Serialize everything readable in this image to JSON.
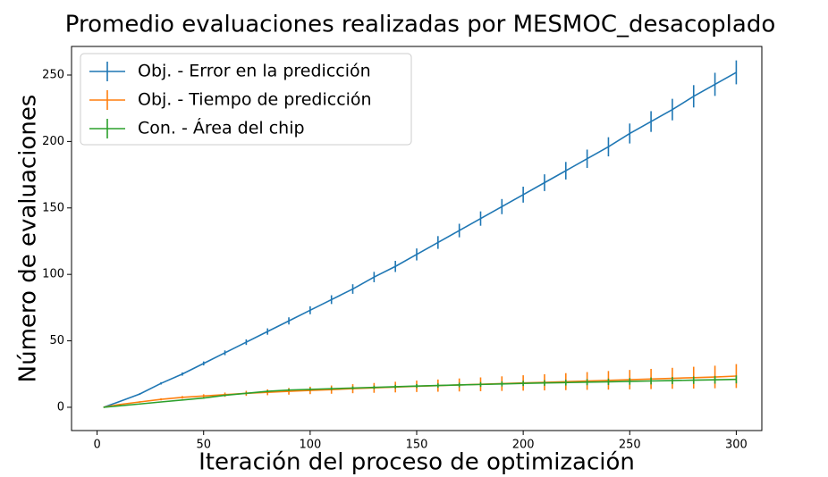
{
  "chart_data": {
    "type": "line",
    "title": "Promedio evaluaciones realizadas por MESMOC_desacoplado",
    "xlabel": "Iteración del proceso de optimización",
    "ylabel": "Número de evaluaciones",
    "x": [
      3,
      10,
      20,
      30,
      40,
      50,
      60,
      70,
      80,
      90,
      100,
      110,
      120,
      130,
      140,
      150,
      160,
      170,
      180,
      190,
      200,
      210,
      220,
      230,
      240,
      250,
      260,
      270,
      280,
      290,
      300
    ],
    "series": [
      {
        "name": "Obj. - Error en la predicción",
        "color": "#1f77b4",
        "values": [
          0,
          4,
          10,
          18,
          25,
          33,
          41,
          49,
          57,
          65,
          73,
          81,
          89,
          98,
          106,
          115,
          124,
          133,
          142,
          151,
          160,
          169,
          178,
          187,
          196,
          206,
          215,
          224,
          234,
          243,
          252
        ],
        "errors": [
          0,
          0.3,
          0.6,
          0.9,
          1.2,
          1.5,
          1.8,
          2.1,
          2.4,
          2.7,
          3,
          3.3,
          3.6,
          3.9,
          4.2,
          4.5,
          4.8,
          5.1,
          5.4,
          5.7,
          6,
          6.3,
          6.6,
          6.9,
          7.2,
          7.5,
          7.8,
          8.1,
          8.4,
          8.7,
          9
        ]
      },
      {
        "name": "Obj. - Tiempo de predicción",
        "color": "#ff7f0e",
        "values": [
          0,
          2,
          4,
          6,
          7.5,
          8.5,
          9.5,
          10.5,
          11.3,
          12,
          12.7,
          13.3,
          14,
          14.6,
          15.2,
          15.8,
          16.3,
          16.8,
          17.3,
          17.8,
          18.3,
          18.8,
          19.3,
          19.8,
          20.3,
          20.8,
          21.3,
          21.8,
          22.3,
          22.8,
          23.5
        ],
        "errors": [
          0,
          0.2,
          0.5,
          0.8,
          1,
          1.3,
          1.6,
          1.9,
          2.2,
          2.5,
          2.8,
          3.1,
          3.4,
          3.7,
          4,
          4.3,
          4.6,
          4.9,
          5.2,
          5.5,
          5.8,
          6.1,
          6.4,
          6.7,
          7,
          7.3,
          7.6,
          7.9,
          8.2,
          8.5,
          9
        ]
      },
      {
        "name": "Con. - Área del chip",
        "color": "#2ca02c",
        "values": [
          0,
          1,
          2.5,
          4,
          5.5,
          7,
          9,
          10.5,
          12,
          13,
          13.5,
          14,
          14.5,
          15,
          15.5,
          16,
          16.4,
          16.8,
          17.2,
          17.6,
          18,
          18.3,
          18.6,
          18.9,
          19.2,
          19.5,
          19.8,
          20.1,
          20.4,
          20.7,
          21
        ],
        "errors": [
          0,
          0.1,
          0.2,
          0.3,
          0.4,
          0.5,
          0.6,
          0.7,
          0.8,
          0.9,
          1,
          1.1,
          1.2,
          1.3,
          1.4,
          1.5,
          1.6,
          1.7,
          1.8,
          1.9,
          2,
          2.1,
          2.2,
          2.3,
          2.4,
          2.5,
          2.6,
          2.7,
          2.8,
          2.9,
          3
        ]
      }
    ],
    "xlim": [
      -12,
      312
    ],
    "ylim": [
      -17.5,
      271.5
    ],
    "xticks": [
      0,
      50,
      100,
      150,
      200,
      250,
      300
    ],
    "yticks": [
      0,
      50,
      100,
      150,
      200,
      250
    ],
    "legend": "upper left"
  }
}
